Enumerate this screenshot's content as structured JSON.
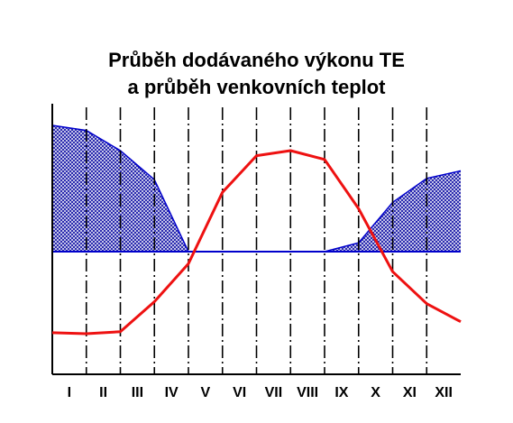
{
  "chart_data": {
    "type": "area",
    "title_lines": [
      "Průběh dodávaného výkonu TE",
      "a průběh venkovních teplot"
    ],
    "categories": [
      "I",
      "II",
      "III",
      "IV",
      "V",
      "VI",
      "VII",
      "VIII",
      "IX",
      "X",
      "XI",
      "XII"
    ],
    "xlabel": "",
    "ylabel": "",
    "ylim": [
      -100,
      100
    ],
    "grid": "vertical dash-dot lines at month boundaries",
    "series": [
      {
        "role": "heat-output",
        "style": "blue outlined area with hatched fill above the baseline",
        "color": "#0000cc",
        "x": [
          0,
          1,
          2,
          3,
          4,
          5,
          6,
          7,
          8,
          9,
          10,
          11,
          12
        ],
        "values": [
          100,
          96,
          80,
          57,
          0,
          0,
          0,
          0,
          0,
          7,
          39,
          58,
          64
        ]
      },
      {
        "role": "outdoor-temperature",
        "style": "red line",
        "color": "#ee1111",
        "x": [
          0,
          1,
          2,
          3,
          4,
          5,
          6,
          7,
          8,
          9,
          10,
          11,
          12
        ],
        "values": [
          -81,
          -82,
          -80,
          -50,
          -12,
          47,
          76,
          80,
          73,
          34,
          -20,
          -52,
          -70
        ]
      }
    ]
  }
}
